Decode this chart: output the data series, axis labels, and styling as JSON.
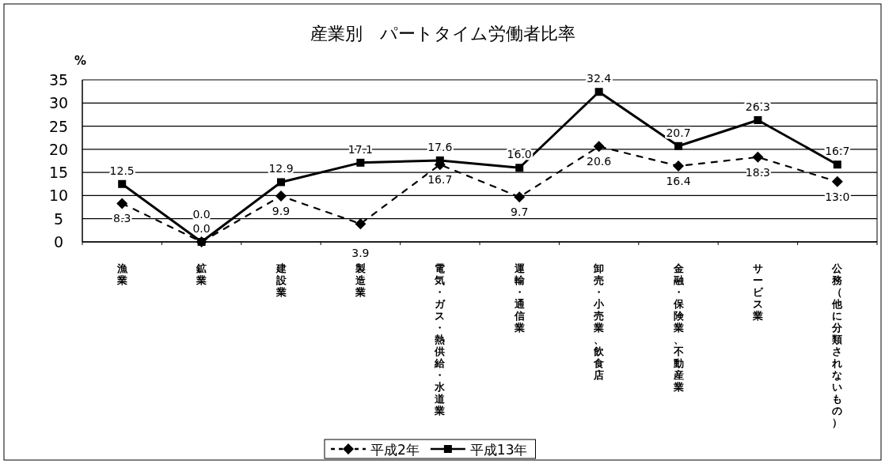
{
  "chart_data": {
    "type": "line",
    "title": "産業別　パートタイム労働者比率",
    "ylabel": "%",
    "categories": [
      "漁業",
      "鉱業",
      "建設業",
      "製造業",
      "電気・ガス・熱供給・水道業",
      "運輸・通信業",
      "卸売・小売業、飲食店",
      "金融・保険業、不動産業",
      "サービス業",
      "公務（他に分類されないもの）"
    ],
    "series": [
      {
        "name": "平成2年",
        "color": "#000000",
        "line_style": "dashed",
        "marker": "diamond",
        "values": [
          8.3,
          0.0,
          9.9,
          3.9,
          16.7,
          9.7,
          20.6,
          16.4,
          18.3,
          13.0
        ],
        "value_labels": [
          "8.3",
          "0.0",
          "9.9",
          "3.9",
          "16.7",
          "9.7",
          "20.6",
          "16.4",
          "18.3",
          "13.0"
        ]
      },
      {
        "name": "平成13年",
        "color": "#000000",
        "line_style": "solid",
        "marker": "square",
        "values": [
          12.5,
          0.0,
          12.9,
          17.1,
          17.6,
          16.0,
          32.4,
          20.7,
          26.3,
          16.7
        ],
        "value_labels": [
          "12.5",
          "0.0",
          "12.9",
          "17.1",
          "17.6",
          "16.0",
          "32.4",
          "20.7",
          "26.3",
          "16.7"
        ]
      }
    ],
    "ylim": [
      0,
      35
    ],
    "yticks": [
      0,
      5,
      10,
      15,
      20,
      25,
      30,
      35
    ],
    "grid": "y",
    "legend": "bottom"
  }
}
